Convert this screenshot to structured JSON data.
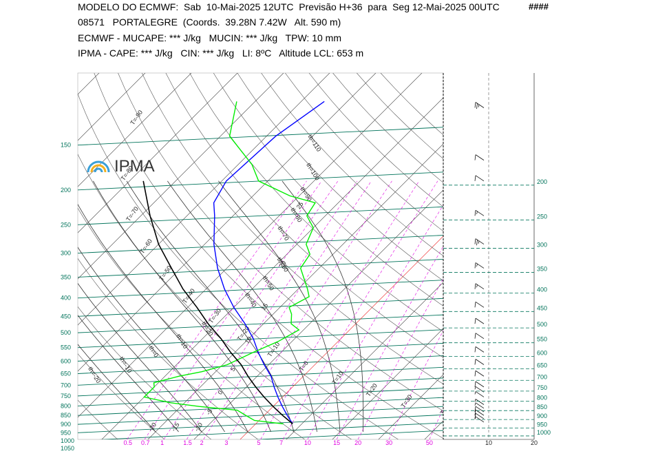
{
  "header": {
    "line1": "MODELO DO ECMWF:  Sab  10-Mai-2025 12UTC  Previsão H+36  para  Seg 12-Mai-2025 00UTC",
    "hashes": "####",
    "line2": "08571   PORTALEGRE  (Coords.  39.28N 7.42W   Alt. 590 m)",
    "line3": "ECMWF - MUCAPE: *** J/kg   MUCIN: *** J/kg   TPW: 10 mm",
    "line4": "IPMA - CAPE: *** J/kg   CIN: *** J/kg   LI: 8ºC   Altitude LCL: 653 m"
  },
  "logo": {
    "text": "IPMA"
  },
  "colors": {
    "temperature": "#0000ff",
    "dewpoint": "#00ee00",
    "parcel": "#000000",
    "isobar": "#00735a",
    "mixing_ratio": "#e000e0",
    "pink_ticks": "#e000e0",
    "isotherm_red": "#ee2222"
  },
  "chart_data": {
    "type": "line",
    "title": "",
    "xlabel": "",
    "ylabel": "",
    "pressure_levels_left": [
      "150",
      "200",
      "250",
      "300",
      "350",
      "400",
      "450",
      "500",
      "550",
      "600",
      "650",
      "700",
      "750",
      "800",
      "850",
      "900",
      "950",
      "1000",
      "1050"
    ],
    "pressure_levels_right": [
      "200",
      "250",
      "300",
      "350",
      "400",
      "450",
      "500",
      "550",
      "600",
      "650",
      "700",
      "750",
      "800",
      "850",
      "900",
      "950",
      "1000"
    ],
    "mixing_ratio_ticks": [
      "0.5",
      "0.7",
      "1",
      "1.5",
      "2",
      "3",
      "5",
      "7",
      "10",
      "15",
      "20",
      "30",
      "50"
    ],
    "wind_axis_ticks": [
      "10",
      "20"
    ],
    "isotherm_labels": [
      "T=-90",
      "T=-80",
      "T=-70",
      "T=-60",
      "T=-50",
      "T=-40",
      "T=-30",
      "T=-20",
      "T=-10",
      "T=0",
      "T=10",
      "T=20",
      "T=30",
      "T=40"
    ],
    "theta_labels": [
      "th=110",
      "th=100",
      "th=90",
      "th=80",
      "th=70",
      "th=60",
      "th=50",
      "th=40",
      "th=20",
      "th=10",
      "th=0",
      "th=-10",
      "th=-20"
    ],
    "moist_adiabat_labels": [
      "25",
      "20",
      "15",
      "10",
      "5",
      "0",
      "-5",
      "-10",
      "-15",
      "-20"
    ],
    "ylim": [
      1050,
      100
    ],
    "series": [
      {
        "name": "",
        "role": "temperature",
        "pressure": [
          950,
          900,
          850,
          800,
          750,
          700,
          650,
          600,
          550,
          500,
          450,
          400,
          350,
          300,
          250,
          230,
          200,
          150,
          120
        ],
        "temperature": [
          8,
          5,
          2,
          -1,
          -4,
          -7,
          -11,
          -15,
          -19,
          -24,
          -30,
          -36,
          -42,
          -48,
          -54,
          -57,
          -59,
          -58,
          -55
        ]
      },
      {
        "name": "",
        "role": "dewpoint",
        "pressure": [
          950,
          930,
          900,
          870,
          850,
          830,
          800,
          750,
          730,
          700,
          680,
          650,
          600,
          560,
          520,
          500,
          470,
          450,
          420,
          400,
          350,
          320,
          300,
          270,
          250,
          230,
          220,
          200,
          180,
          150,
          120
        ],
        "temperature": [
          6,
          -1,
          -4,
          -7,
          -16,
          -23,
          -30,
          -30,
          -31,
          -27,
          -23,
          -19,
          -16,
          -13,
          -11,
          -14,
          -16,
          -18,
          -16,
          -18,
          -24,
          -25,
          -28,
          -30,
          -34,
          -35,
          -42,
          -52,
          -57,
          -68,
          -74
        ]
      },
      {
        "name": "",
        "role": "parcel",
        "pressure": [
          950,
          900,
          850,
          800,
          750,
          700,
          650,
          600,
          550,
          500,
          450,
          400,
          350,
          300,
          250,
          200
        ],
        "temperature": [
          8,
          4,
          0,
          -4,
          -8,
          -12,
          -16,
          -21,
          -26,
          -32,
          -38,
          -45,
          -52,
          -60,
          -68,
          -77
        ]
      }
    ],
    "wind_barbs": [
      {
        "p": 940,
        "spd": 5,
        "dir": 340
      },
      {
        "p": 920,
        "spd": 10,
        "dir": 330
      },
      {
        "p": 900,
        "spd": 10,
        "dir": 320
      },
      {
        "p": 880,
        "spd": 10,
        "dir": 310
      },
      {
        "p": 860,
        "spd": 5,
        "dir": 300
      },
      {
        "p": 840,
        "spd": 5,
        "dir": 300
      },
      {
        "p": 800,
        "spd": 5,
        "dir": 300
      },
      {
        "p": 775,
        "spd": 5,
        "dir": 300
      },
      {
        "p": 750,
        "spd": 10,
        "dir": 300
      },
      {
        "p": 700,
        "spd": 10,
        "dir": 300
      },
      {
        "p": 650,
        "spd": 10,
        "dir": 300
      },
      {
        "p": 600,
        "spd": 10,
        "dir": 290
      },
      {
        "p": 550,
        "spd": 10,
        "dir": 290
      },
      {
        "p": 500,
        "spd": 10,
        "dir": 290
      },
      {
        "p": 450,
        "spd": 10,
        "dir": 280
      },
      {
        "p": 400,
        "spd": 15,
        "dir": 280
      },
      {
        "p": 350,
        "spd": 15,
        "dir": 280
      },
      {
        "p": 300,
        "spd": 25,
        "dir": 270
      },
      {
        "p": 250,
        "spd": 15,
        "dir": 270
      },
      {
        "p": 200,
        "spd": 10,
        "dir": 270
      },
      {
        "p": 175,
        "spd": 10,
        "dir": 270
      },
      {
        "p": 125,
        "spd": 25,
        "dir": 270
      }
    ]
  }
}
